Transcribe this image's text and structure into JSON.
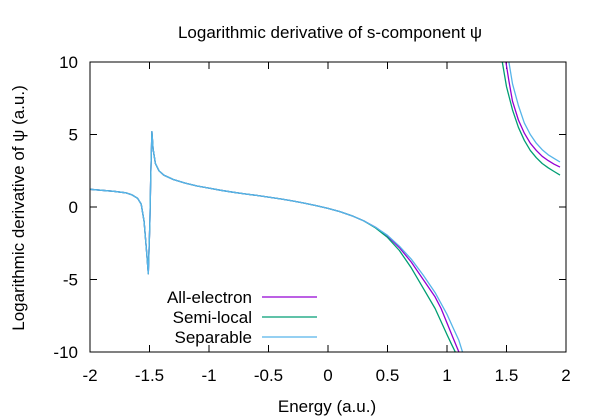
{
  "chart_data": {
    "type": "line",
    "title": "Logarithmic derivative of s-component ψ",
    "xlabel": "Energy (a.u.)",
    "ylabel": "Logarithmic derivative of ψ (a.u.)",
    "xlim": [
      -2,
      2
    ],
    "ylim": [
      -10,
      10
    ],
    "x_ticks": [
      {
        "value": -2,
        "label": "-2"
      },
      {
        "value": -1.5,
        "label": "-1.5"
      },
      {
        "value": -1,
        "label": "-1"
      },
      {
        "value": -0.5,
        "label": "-0.5"
      },
      {
        "value": 0,
        "label": "0"
      },
      {
        "value": 0.5,
        "label": "0.5"
      },
      {
        "value": 1,
        "label": "1"
      },
      {
        "value": 1.5,
        "label": "1.5"
      },
      {
        "value": 2,
        "label": "2"
      }
    ],
    "y_ticks": [
      {
        "value": -10,
        "label": "-10"
      },
      {
        "value": -5,
        "label": "-5"
      },
      {
        "value": 0,
        "label": "0"
      },
      {
        "value": 5,
        "label": "5"
      },
      {
        "value": 10,
        "label": "10"
      }
    ],
    "grid": false,
    "legend_position": "bottom-left",
    "series": [
      {
        "name": "All-electron",
        "color": "#9400d3",
        "segments": [
          [
            [
              -2.0,
              1.22
            ],
            [
              -1.9,
              1.15
            ],
            [
              -1.8,
              1.08
            ],
            [
              -1.7,
              0.98
            ],
            [
              -1.65,
              0.85
            ],
            [
              -1.6,
              0.6
            ],
            [
              -1.57,
              0.2
            ],
            [
              -1.545,
              -1.0
            ],
            [
              -1.525,
              -3.0
            ],
            [
              -1.51,
              -4.6
            ],
            [
              -1.497,
              -1.0
            ],
            [
              -1.49,
              2.0
            ],
            [
              -1.48,
              5.2
            ],
            [
              -1.47,
              4.0
            ],
            [
              -1.45,
              3.0
            ],
            [
              -1.42,
              2.5
            ],
            [
              -1.38,
              2.2
            ],
            [
              -1.3,
              1.9
            ],
            [
              -1.2,
              1.65
            ],
            [
              -1.1,
              1.45
            ],
            [
              -1.0,
              1.3
            ],
            [
              -0.9,
              1.15
            ],
            [
              -0.8,
              1.02
            ],
            [
              -0.7,
              0.9
            ],
            [
              -0.6,
              0.8
            ],
            [
              -0.5,
              0.68
            ],
            [
              -0.4,
              0.56
            ],
            [
              -0.3,
              0.42
            ],
            [
              -0.2,
              0.27
            ],
            [
              -0.1,
              0.1
            ],
            [
              0.0,
              -0.1
            ],
            [
              0.1,
              -0.32
            ],
            [
              0.2,
              -0.6
            ],
            [
              0.3,
              -0.95
            ],
            [
              0.4,
              -1.4
            ],
            [
              0.5,
              -2.0
            ],
            [
              0.6,
              -2.8
            ],
            [
              0.7,
              -3.8
            ],
            [
              0.8,
              -5.0
            ],
            [
              0.9,
              -6.2
            ],
            [
              0.95,
              -7.0
            ],
            [
              1.0,
              -8.0
            ],
            [
              1.05,
              -9.0
            ],
            [
              1.08,
              -9.6
            ],
            [
              1.1,
              -10.0
            ]
          ],
          [
            [
              1.495,
              10.0
            ],
            [
              1.52,
              8.7
            ],
            [
              1.55,
              7.3
            ],
            [
              1.6,
              6.0
            ],
            [
              1.65,
              5.1
            ],
            [
              1.7,
              4.4
            ],
            [
              1.75,
              3.9
            ],
            [
              1.8,
              3.5
            ],
            [
              1.85,
              3.2
            ],
            [
              1.9,
              2.95
            ],
            [
              1.95,
              2.75
            ]
          ]
        ]
      },
      {
        "name": "Semi-local",
        "color": "#009e73",
        "segments": [
          [
            [
              -2.0,
              1.22
            ],
            [
              -1.9,
              1.15
            ],
            [
              -1.8,
              1.08
            ],
            [
              -1.7,
              0.98
            ],
            [
              -1.65,
              0.85
            ],
            [
              -1.6,
              0.6
            ],
            [
              -1.57,
              0.2
            ],
            [
              -1.545,
              -1.0
            ],
            [
              -1.525,
              -3.0
            ],
            [
              -1.51,
              -4.6
            ],
            [
              -1.497,
              -1.0
            ],
            [
              -1.49,
              2.0
            ],
            [
              -1.48,
              5.2
            ],
            [
              -1.47,
              4.0
            ],
            [
              -1.45,
              3.0
            ],
            [
              -1.42,
              2.5
            ],
            [
              -1.38,
              2.2
            ],
            [
              -1.3,
              1.9
            ],
            [
              -1.2,
              1.65
            ],
            [
              -1.1,
              1.45
            ],
            [
              -1.0,
              1.3
            ],
            [
              -0.9,
              1.15
            ],
            [
              -0.8,
              1.02
            ],
            [
              -0.7,
              0.9
            ],
            [
              -0.6,
              0.8
            ],
            [
              -0.5,
              0.68
            ],
            [
              -0.4,
              0.56
            ],
            [
              -0.3,
              0.42
            ],
            [
              -0.2,
              0.27
            ],
            [
              -0.1,
              0.1
            ],
            [
              0.0,
              -0.1
            ],
            [
              0.1,
              -0.32
            ],
            [
              0.2,
              -0.6
            ],
            [
              0.3,
              -0.95
            ],
            [
              0.4,
              -1.45
            ],
            [
              0.5,
              -2.1
            ],
            [
              0.6,
              -3.0
            ],
            [
              0.7,
              -4.2
            ],
            [
              0.8,
              -5.6
            ],
            [
              0.9,
              -7.0
            ],
            [
              0.95,
              -7.9
            ],
            [
              1.0,
              -8.8
            ],
            [
              1.04,
              -9.5
            ],
            [
              1.07,
              -10.0
            ]
          ],
          [
            [
              1.465,
              10.0
            ],
            [
              1.5,
              8.3
            ],
            [
              1.55,
              6.7
            ],
            [
              1.6,
              5.5
            ],
            [
              1.65,
              4.6
            ],
            [
              1.7,
              3.9
            ],
            [
              1.75,
              3.4
            ],
            [
              1.8,
              3.0
            ],
            [
              1.85,
              2.7
            ],
            [
              1.9,
              2.45
            ],
            [
              1.95,
              2.2
            ]
          ]
        ]
      },
      {
        "name": "Separable",
        "color": "#56b4e9",
        "segments": [
          [
            [
              -2.0,
              1.22
            ],
            [
              -1.9,
              1.15
            ],
            [
              -1.8,
              1.08
            ],
            [
              -1.7,
              0.98
            ],
            [
              -1.65,
              0.85
            ],
            [
              -1.6,
              0.6
            ],
            [
              -1.57,
              0.2
            ],
            [
              -1.545,
              -1.0
            ],
            [
              -1.525,
              -3.0
            ],
            [
              -1.51,
              -4.6
            ],
            [
              -1.497,
              -1.0
            ],
            [
              -1.49,
              2.0
            ],
            [
              -1.48,
              5.2
            ],
            [
              -1.47,
              4.0
            ],
            [
              -1.45,
              3.0
            ],
            [
              -1.42,
              2.5
            ],
            [
              -1.38,
              2.2
            ],
            [
              -1.3,
              1.9
            ],
            [
              -1.2,
              1.65
            ],
            [
              -1.1,
              1.45
            ],
            [
              -1.0,
              1.3
            ],
            [
              -0.9,
              1.15
            ],
            [
              -0.8,
              1.02
            ],
            [
              -0.7,
              0.9
            ],
            [
              -0.6,
              0.8
            ],
            [
              -0.5,
              0.68
            ],
            [
              -0.4,
              0.56
            ],
            [
              -0.3,
              0.42
            ],
            [
              -0.2,
              0.27
            ],
            [
              -0.1,
              0.1
            ],
            [
              0.0,
              -0.1
            ],
            [
              0.1,
              -0.32
            ],
            [
              0.2,
              -0.6
            ],
            [
              0.3,
              -0.95
            ],
            [
              0.4,
              -1.4
            ],
            [
              0.5,
              -1.95
            ],
            [
              0.6,
              -2.7
            ],
            [
              0.7,
              -3.6
            ],
            [
              0.8,
              -4.7
            ],
            [
              0.9,
              -5.9
            ],
            [
              1.0,
              -7.4
            ],
            [
              1.05,
              -8.3
            ],
            [
              1.1,
              -9.2
            ],
            [
              1.13,
              -10.0
            ]
          ],
          [
            [
              1.52,
              10.0
            ],
            [
              1.55,
              8.5
            ],
            [
              1.6,
              7.0
            ],
            [
              1.65,
              5.8
            ],
            [
              1.7,
              5.0
            ],
            [
              1.75,
              4.4
            ],
            [
              1.8,
              3.95
            ],
            [
              1.85,
              3.6
            ],
            [
              1.9,
              3.35
            ],
            [
              1.95,
              3.1
            ]
          ]
        ]
      }
    ]
  }
}
